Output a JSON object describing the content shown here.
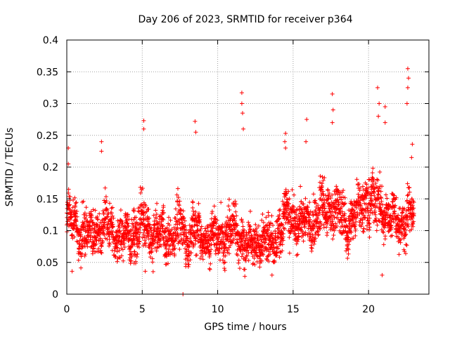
{
  "chart_data": {
    "type": "scatter",
    "title": "Day 206 of 2023, SRMTID for receiver p364",
    "xlabel": "GPS time / hours",
    "ylabel": "SRMTID / TECUs",
    "xlim": [
      0,
      24
    ],
    "ylim": [
      0,
      0.4
    ],
    "x_ticks": [
      0,
      5,
      10,
      15,
      20
    ],
    "x_tick_labels": [
      "0",
      "5",
      "10",
      "15",
      "20"
    ],
    "y_ticks": [
      0,
      0.05,
      0.1,
      0.15,
      0.2,
      0.25,
      0.3,
      0.35,
      0.4
    ],
    "y_tick_labels": [
      "0",
      "0.05",
      "0.1",
      "0.15",
      "0.2",
      "0.25",
      "0.3",
      "0.35",
      "0.4"
    ],
    "grid": true,
    "marker": "plus",
    "colors": {
      "series": "#ff0000",
      "grid": "#a0a0a0",
      "axis": "#000000"
    },
    "envelope": {
      "x": [
        0,
        0.5,
        1,
        1.5,
        2,
        2.5,
        3,
        3.5,
        4,
        4.5,
        5,
        5.5,
        6,
        6.5,
        7,
        7.5,
        8,
        8.5,
        9,
        9.5,
        10,
        10.5,
        11,
        11.5,
        12,
        12.5,
        13,
        13.5,
        14,
        14.5,
        15,
        15.5,
        16,
        16.5,
        17,
        17.5,
        18,
        18.5,
        19,
        19.5,
        20,
        20.5,
        21,
        21.5,
        22,
        22.5,
        23
      ],
      "center": [
        0.12,
        0.11,
        0.1,
        0.09,
        0.1,
        0.11,
        0.1,
        0.09,
        0.09,
        0.1,
        0.11,
        0.1,
        0.095,
        0.09,
        0.095,
        0.1,
        0.09,
        0.1,
        0.09,
        0.085,
        0.09,
        0.095,
        0.1,
        0.1,
        0.07,
        0.08,
        0.09,
        0.08,
        0.1,
        0.12,
        0.12,
        0.11,
        0.11,
        0.12,
        0.13,
        0.14,
        0.13,
        0.11,
        0.12,
        0.14,
        0.15,
        0.14,
        0.13,
        0.12,
        0.11,
        0.12,
        0.13
      ],
      "spread": [
        0.035,
        0.03,
        0.035,
        0.03,
        0.03,
        0.035,
        0.03,
        0.03,
        0.03,
        0.035,
        0.035,
        0.03,
        0.03,
        0.03,
        0.03,
        0.035,
        0.03,
        0.035,
        0.03,
        0.03,
        0.03,
        0.035,
        0.035,
        0.035,
        0.03,
        0.03,
        0.03,
        0.03,
        0.035,
        0.035,
        0.03,
        0.03,
        0.03,
        0.035,
        0.035,
        0.035,
        0.035,
        0.03,
        0.035,
        0.035,
        0.035,
        0.035,
        0.03,
        0.03,
        0.03,
        0.035,
        0.03
      ]
    },
    "spikes": [
      {
        "x": 0.1,
        "y": 0.23
      },
      {
        "x": 0.1,
        "y": 0.205
      },
      {
        "x": 2.3,
        "y": 0.24
      },
      {
        "x": 2.3,
        "y": 0.225
      },
      {
        "x": 5.1,
        "y": 0.273
      },
      {
        "x": 5.1,
        "y": 0.26
      },
      {
        "x": 8.5,
        "y": 0.272
      },
      {
        "x": 8.55,
        "y": 0.255
      },
      {
        "x": 11.6,
        "y": 0.317
      },
      {
        "x": 11.6,
        "y": 0.3
      },
      {
        "x": 11.65,
        "y": 0.285
      },
      {
        "x": 11.7,
        "y": 0.26
      },
      {
        "x": 14.5,
        "y": 0.253
      },
      {
        "x": 14.45,
        "y": 0.24
      },
      {
        "x": 14.5,
        "y": 0.23
      },
      {
        "x": 15.9,
        "y": 0.275
      },
      {
        "x": 15.85,
        "y": 0.24
      },
      {
        "x": 17.6,
        "y": 0.315
      },
      {
        "x": 17.65,
        "y": 0.29
      },
      {
        "x": 17.6,
        "y": 0.27
      },
      {
        "x": 20.6,
        "y": 0.325
      },
      {
        "x": 20.7,
        "y": 0.3
      },
      {
        "x": 20.65,
        "y": 0.28
      },
      {
        "x": 21.1,
        "y": 0.295
      },
      {
        "x": 21.1,
        "y": 0.27
      },
      {
        "x": 22.6,
        "y": 0.355
      },
      {
        "x": 22.65,
        "y": 0.34
      },
      {
        "x": 22.6,
        "y": 0.325
      },
      {
        "x": 22.55,
        "y": 0.3
      },
      {
        "x": 22.9,
        "y": 0.236
      },
      {
        "x": 22.85,
        "y": 0.215
      },
      {
        "x": 7.7,
        "y": 0.0
      },
      {
        "x": 0.35,
        "y": 0.036
      },
      {
        "x": 5.2,
        "y": 0.036
      },
      {
        "x": 11.8,
        "y": 0.028
      },
      {
        "x": 13.6,
        "y": 0.03
      },
      {
        "x": 20.9,
        "y": 0.03
      }
    ]
  }
}
